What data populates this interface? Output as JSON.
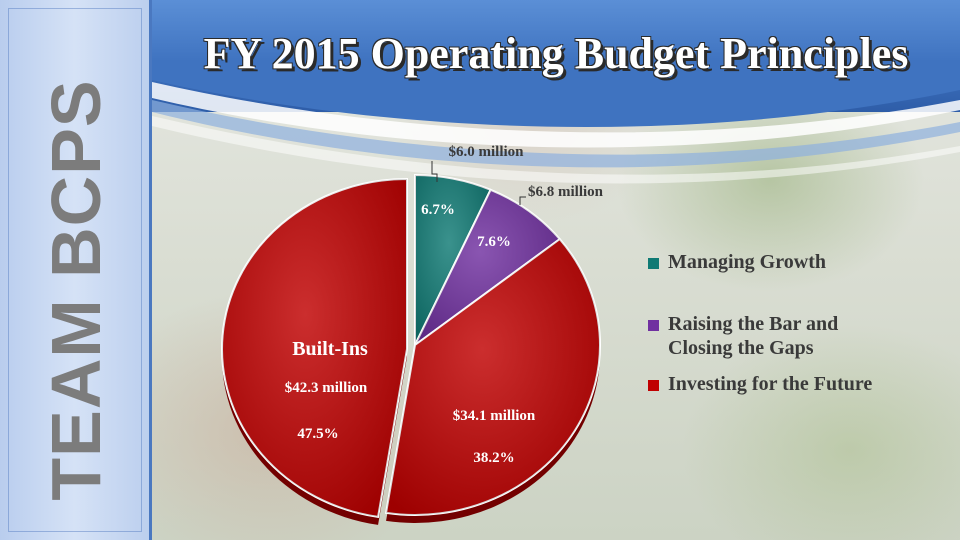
{
  "slide": {
    "title": "FY 2015 Operating Budget Principles",
    "side_banner": "TEAM BCPS"
  },
  "chart_data": {
    "type": "pie",
    "title": "",
    "slices": [
      {
        "name": "Managing Growth",
        "amount": "$6.0 million",
        "percent": 6.7,
        "percent_label": "6.7%",
        "color": "#0f7a74"
      },
      {
        "name": "Raising the Bar and Closing the Gaps",
        "amount": "$6.8 million",
        "percent": 7.6,
        "percent_label": "7.6%",
        "color": "#7030a0"
      },
      {
        "name": "Investing for the Future",
        "amount": "$34.1 million",
        "percent": 38.2,
        "percent_label": "38.2%",
        "color": "#c00000"
      },
      {
        "name": "Built-Ins",
        "amount": "$42.3 million",
        "percent": 47.5,
        "percent_label": "47.5%",
        "color": "#c00000",
        "exploded": true
      }
    ],
    "legend": {
      "placement": "right",
      "entries": [
        {
          "label": "Managing Growth",
          "color": "#0f7a74"
        },
        {
          "label": "Raising the Bar and Closing the Gaps",
          "color": "#7030a0"
        },
        {
          "label": "Investing for the Future",
          "color": "#c00000"
        }
      ]
    }
  }
}
